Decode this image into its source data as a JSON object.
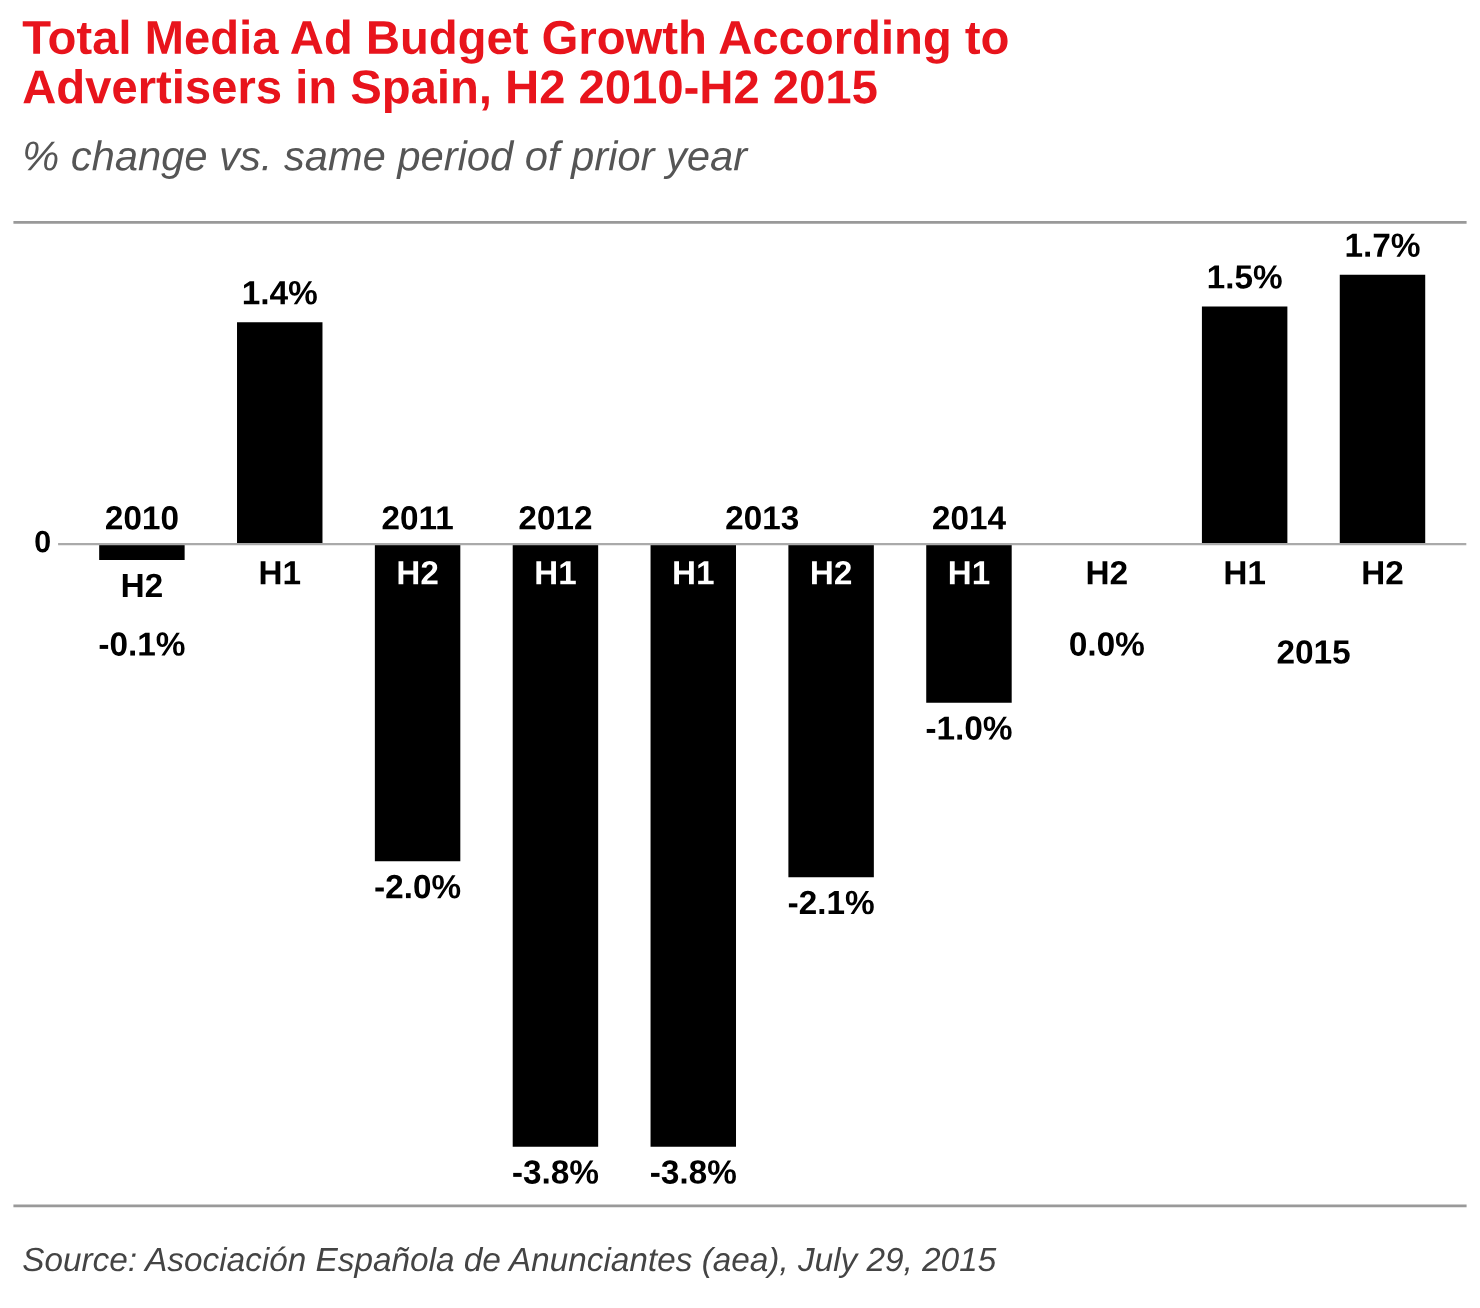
{
  "chart_data": {
    "type": "bar",
    "title": "Total Media Ad Budget Growth According to\nAdvertisers in Spain, H2 2010-H2 2015",
    "subtitle": "% change vs. same period of prior year",
    "categories": [
      "H2",
      "H1",
      "H2",
      "H1",
      "H1",
      "H2",
      "H1",
      "H2",
      "H1",
      "H2"
    ],
    "values": [
      -0.1,
      1.4,
      -2.0,
      -3.8,
      -3.8,
      -2.1,
      -1.0,
      0.0,
      1.5,
      1.7
    ],
    "value_labels": [
      "-0.1%",
      "1.4%",
      "-2.0%",
      "-3.8%",
      "-3.8%",
      "-2.1%",
      "-1.0%",
      "0.0%",
      "1.5%",
      "1.7%"
    ],
    "color": "#000000",
    "annotations": [
      "0",
      "2010",
      "2011",
      "2012",
      "2013",
      "2014",
      "2015",
      "Source: Asociación Española de Anunciantes (aea), July 29, 2015"
    ]
  }
}
